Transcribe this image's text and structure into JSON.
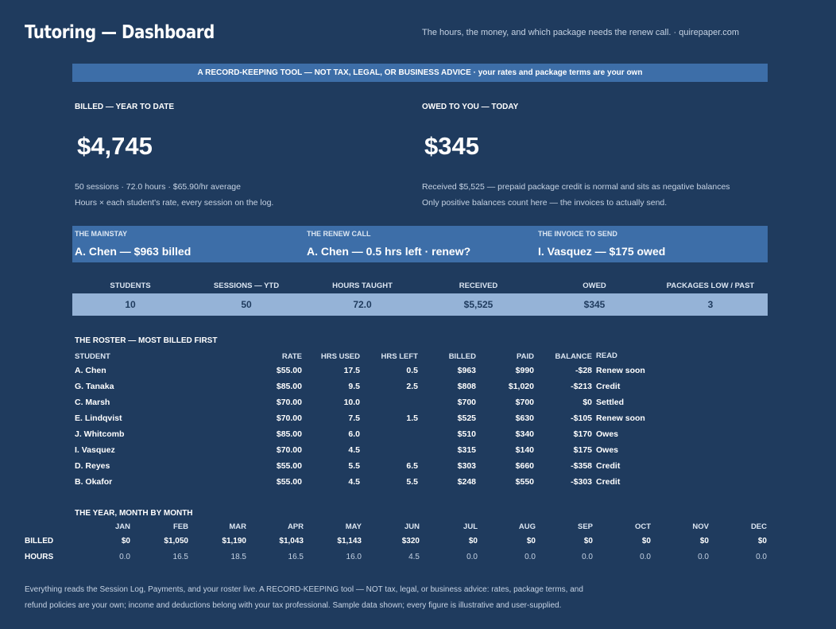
{
  "header": {
    "title": "Tutoring — Dashboard",
    "tagline": "The hours, the money, and which package needs the renew call.  ·  quirepaper.com"
  },
  "disclaimer": "A RECORD-KEEPING TOOL — NOT TAX, LEGAL, OR BUSINESS ADVICE  ·  your rates and package terms are your own",
  "billed": {
    "label": "BILLED — YEAR TO DATE",
    "value": "$4,745",
    "note1": "50 sessions  ·  72.0 hours  ·  $65.90/hr average",
    "note2": "Hours × each student's rate, every session on the log."
  },
  "owed": {
    "label": "OWED TO YOU — TODAY",
    "value": "$345",
    "note1": "Received $5,525 — prepaid package credit is normal and sits as negative balances",
    "note2": "Only positive balances count here — the invoices to actually send."
  },
  "callouts": [
    {
      "label": "THE MAINSTAY",
      "value": "A. Chen — $963 billed"
    },
    {
      "label": "THE RENEW CALL",
      "value": "A. Chen — 0.5 hrs left · renew?"
    },
    {
      "label": "THE INVOICE TO SEND",
      "value": "I. Vasquez — $175 owed"
    }
  ],
  "kpis": [
    {
      "label": "STUDENTS",
      "value": "10"
    },
    {
      "label": "SESSIONS — YTD",
      "value": "50"
    },
    {
      "label": "HOURS TAUGHT",
      "value": "72.0"
    },
    {
      "label": "RECEIVED",
      "value": "$5,525"
    },
    {
      "label": "OWED",
      "value": "$345"
    },
    {
      "label": "PACKAGES LOW / PAST",
      "value": "3"
    }
  ],
  "roster": {
    "title": "THE ROSTER — MOST BILLED FIRST",
    "headers": {
      "student": "STUDENT",
      "rate": "RATE",
      "used": "HRS USED",
      "left": "HRS LEFT",
      "billed": "BILLED",
      "paid": "PAID",
      "balance": "BALANCE",
      "read": "READ"
    },
    "rows": [
      {
        "student": "A. Chen",
        "rate": "$55.00",
        "used": "17.5",
        "left": "0.5",
        "billed": "$963",
        "paid": "$990",
        "balance": "-$28",
        "read": "Renew soon"
      },
      {
        "student": "G. Tanaka",
        "rate": "$85.00",
        "used": "9.5",
        "left": "2.5",
        "billed": "$808",
        "paid": "$1,020",
        "balance": "-$213",
        "read": "Credit"
      },
      {
        "student": "C. Marsh",
        "rate": "$70.00",
        "used": "10.0",
        "left": "",
        "billed": "$700",
        "paid": "$700",
        "balance": "$0",
        "read": "Settled"
      },
      {
        "student": "E. Lindqvist",
        "rate": "$70.00",
        "used": "7.5",
        "left": "1.5",
        "billed": "$525",
        "paid": "$630",
        "balance": "-$105",
        "read": "Renew soon"
      },
      {
        "student": "J. Whitcomb",
        "rate": "$85.00",
        "used": "6.0",
        "left": "",
        "billed": "$510",
        "paid": "$340",
        "balance": "$170",
        "read": "Owes"
      },
      {
        "student": "I. Vasquez",
        "rate": "$70.00",
        "used": "4.5",
        "left": "",
        "billed": "$315",
        "paid": "$140",
        "balance": "$175",
        "read": "Owes"
      },
      {
        "student": "D. Reyes",
        "rate": "$55.00",
        "used": "5.5",
        "left": "6.5",
        "billed": "$303",
        "paid": "$660",
        "balance": "-$358",
        "read": "Credit"
      },
      {
        "student": "B. Okafor",
        "rate": "$55.00",
        "used": "4.5",
        "left": "5.5",
        "billed": "$248",
        "paid": "$550",
        "balance": "-$303",
        "read": "Credit"
      }
    ]
  },
  "months": {
    "title": "THE YEAR, MONTH BY MONTH",
    "names": [
      "JAN",
      "FEB",
      "MAR",
      "APR",
      "MAY",
      "JUN",
      "JUL",
      "AUG",
      "SEP",
      "OCT",
      "NOV",
      "DEC"
    ],
    "billed_label": "BILLED",
    "hours_label": "HOURS",
    "billed": [
      "$0",
      "$1,050",
      "$1,190",
      "$1,043",
      "$1,143",
      "$320",
      "$0",
      "$0",
      "$0",
      "$0",
      "$0",
      "$0"
    ],
    "hours": [
      "0.0",
      "16.5",
      "18.5",
      "16.5",
      "16.0",
      "4.5",
      "0.0",
      "0.0",
      "0.0",
      "0.0",
      "0.0",
      "0.0"
    ]
  },
  "footer": {
    "line1": "Everything reads the Session Log, Payments, and your roster live. A RECORD-KEEPING tool — NOT tax, legal, or business advice: rates, package terms, and",
    "line2": "refund policies are your own; income and deductions belong with your tax professional. Sample data shown; every figure is illustrative and user-supplied."
  }
}
